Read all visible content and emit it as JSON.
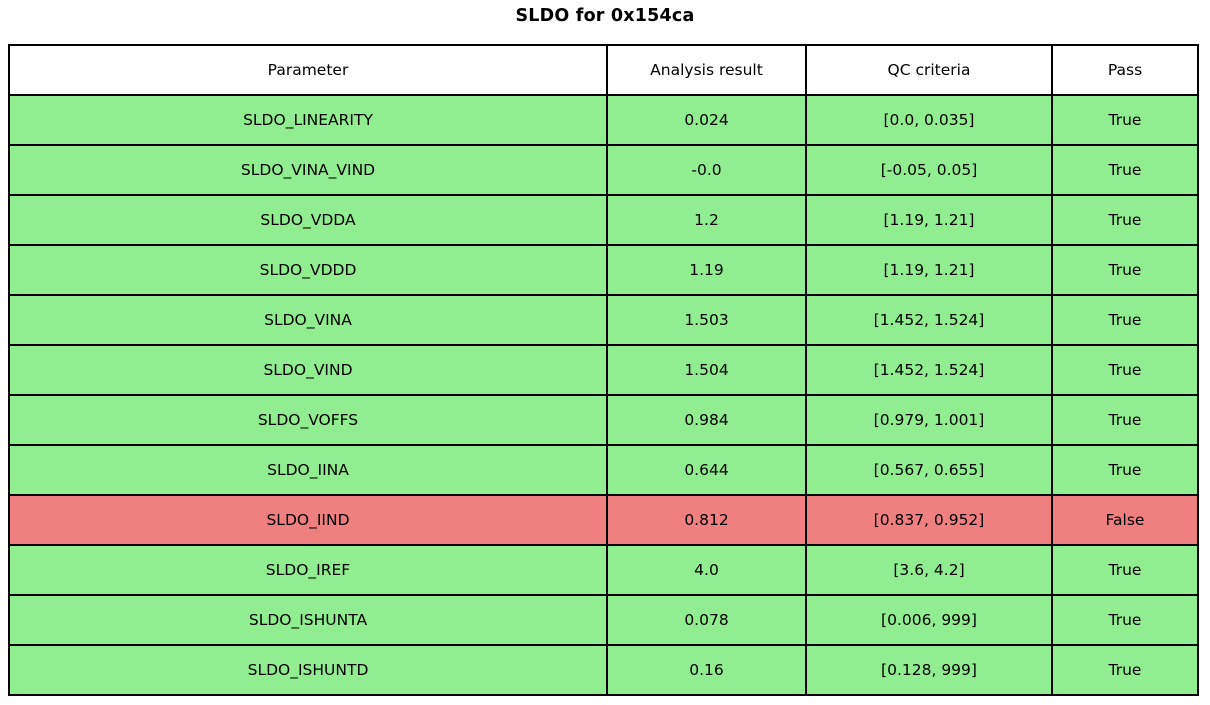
{
  "title": "SLDO for 0x154ca",
  "colors": {
    "pass_bg": "#90EE90",
    "fail_bg": "#F08080",
    "header_bg": "#FFFFFF",
    "border": "#000000",
    "text": "#000000"
  },
  "chart_data": {
    "type": "table",
    "title": "SLDO for 0x154ca",
    "columns": [
      "Parameter",
      "Analysis result",
      "QC criteria",
      "Pass"
    ],
    "rows": [
      [
        "SLDO_LINEARITY",
        "0.024",
        "[0.0, 0.035]",
        "True"
      ],
      [
        "SLDO_VINA_VIND",
        "-0.0",
        "[-0.05, 0.05]",
        "True"
      ],
      [
        "SLDO_VDDA",
        "1.2",
        "[1.19, 1.21]",
        "True"
      ],
      [
        "SLDO_VDDD",
        "1.19",
        "[1.19, 1.21]",
        "True"
      ],
      [
        "SLDO_VINA",
        "1.503",
        "[1.452, 1.524]",
        "True"
      ],
      [
        "SLDO_VIND",
        "1.504",
        "[1.452, 1.524]",
        "True"
      ],
      [
        "SLDO_VOFFS",
        "0.984",
        "[0.979, 1.001]",
        "True"
      ],
      [
        "SLDO_IINA",
        "0.644",
        "[0.567, 0.655]",
        "True"
      ],
      [
        "SLDO_IIND",
        "0.812",
        "[0.837, 0.952]",
        "False"
      ],
      [
        "SLDO_IREF",
        "4.0",
        "[3.6, 4.2]",
        "True"
      ],
      [
        "SLDO_ISHUNTA",
        "0.078",
        "[0.006, 999]",
        "True"
      ],
      [
        "SLDO_ISHUNTD",
        "0.16",
        "[0.128, 999]",
        "True"
      ]
    ],
    "row_status": [
      "pass",
      "pass",
      "pass",
      "pass",
      "pass",
      "pass",
      "pass",
      "pass",
      "fail",
      "pass",
      "pass",
      "pass"
    ],
    "layout": {
      "grid": "on",
      "header_position": "top"
    }
  }
}
